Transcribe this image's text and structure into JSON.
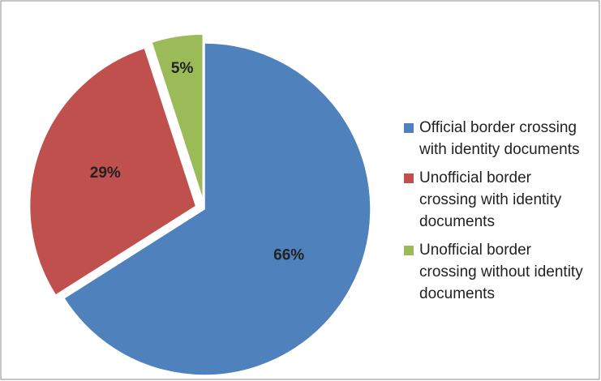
{
  "chart_data": {
    "type": "pie",
    "categories": [
      "Official border crossing with identity documents",
      "Unofficial border crossing with identity documents",
      "Unofficial border crossing without identity documents"
    ],
    "values": [
      66,
      29,
      5
    ],
    "value_labels": [
      "66%",
      "29%",
      "5%"
    ],
    "colors": [
      "#4f81bd",
      "#c0504d",
      "#9bbb59"
    ],
    "legend": "right"
  }
}
